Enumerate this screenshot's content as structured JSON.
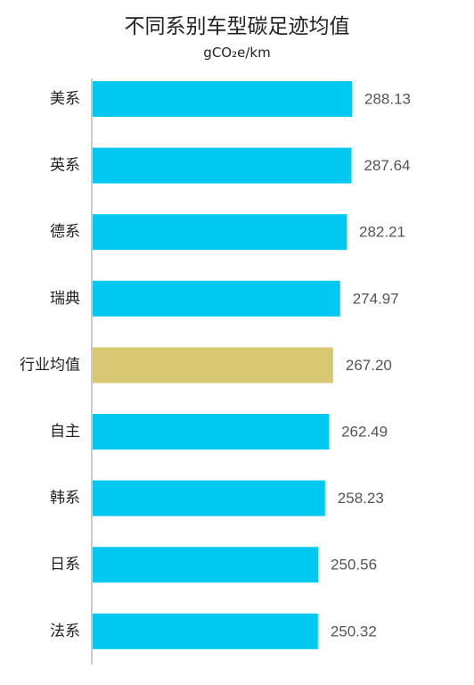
{
  "chart_data": {
    "type": "bar",
    "orientation": "horizontal",
    "title": "不同系别车型碳足迹均值",
    "subtitle": "gCO₂e/km",
    "categories": [
      "美系",
      "英系",
      "德系",
      "瑞典",
      "行业均值",
      "自主",
      "韩系",
      "日系",
      "法系"
    ],
    "values": [
      288.13,
      287.64,
      282.21,
      274.97,
      267.2,
      262.49,
      258.23,
      250.56,
      250.32
    ],
    "value_labels": [
      "288.13",
      "287.64",
      "282.21",
      "274.97",
      "267.20",
      "262.49",
      "258.23",
      "250.56",
      "250.32"
    ],
    "highlight_category": "行业均值",
    "colors": {
      "bar": "#00C8F0",
      "highlight": "#D8C874",
      "axis": "#BBBBBB"
    },
    "xlim": [
      0,
      288.13
    ],
    "grid": false,
    "legend": "none"
  }
}
